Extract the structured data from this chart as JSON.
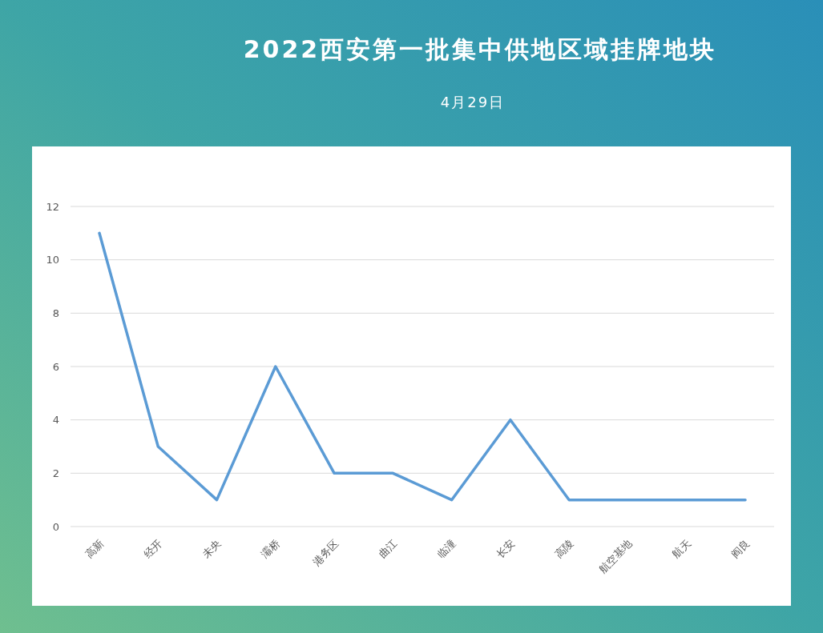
{
  "chart_data": {
    "type": "line",
    "title": "2022西安第一批集中供地区域挂牌地块",
    "subtitle": "4月29日",
    "categories": [
      "高新",
      "经开",
      "未央",
      "灞桥",
      "港务区",
      "曲江",
      "临潼",
      "长安",
      "高陵",
      "航空基地",
      "航天",
      "阎良"
    ],
    "series": [
      {
        "color": "#5b9bd5",
        "values": [
          11,
          3,
          1,
          6,
          2,
          2,
          1,
          4,
          1,
          1,
          1,
          1
        ]
      }
    ],
    "ylim": [
      0,
      12
    ],
    "yticks": [
      0,
      2,
      4,
      6,
      8,
      10,
      12
    ],
    "grid": "y",
    "marker": "none",
    "line_style": "solid"
  }
}
